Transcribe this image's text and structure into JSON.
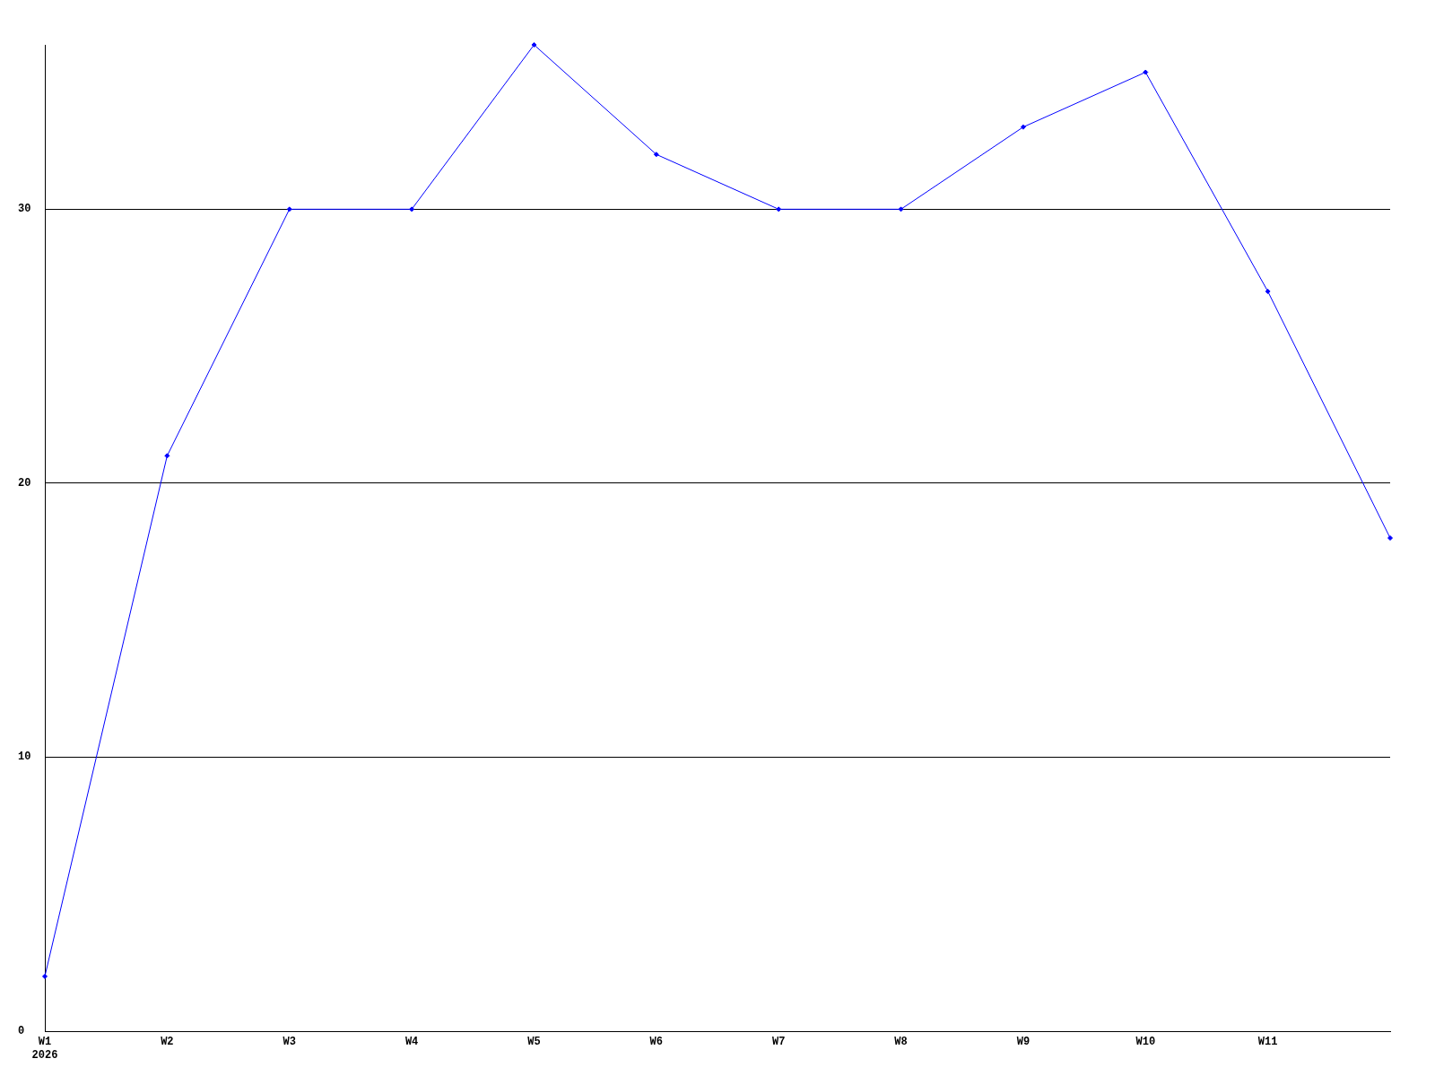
{
  "chart_data": {
    "type": "line",
    "categories": [
      "W1\n2026",
      "W2",
      "W3",
      "W4",
      "W5",
      "W6",
      "W7",
      "W8",
      "W9",
      "W10",
      "W11",
      null
    ],
    "values": [
      2,
      21,
      30,
      30,
      36,
      32,
      30,
      30,
      33,
      35,
      27,
      18
    ],
    "color": "#0000ff",
    "ylim": [
      0,
      36
    ],
    "yticks": [
      0,
      10,
      20,
      30
    ],
    "grid": "y",
    "marker": "diamond",
    "line_style": "solid"
  }
}
